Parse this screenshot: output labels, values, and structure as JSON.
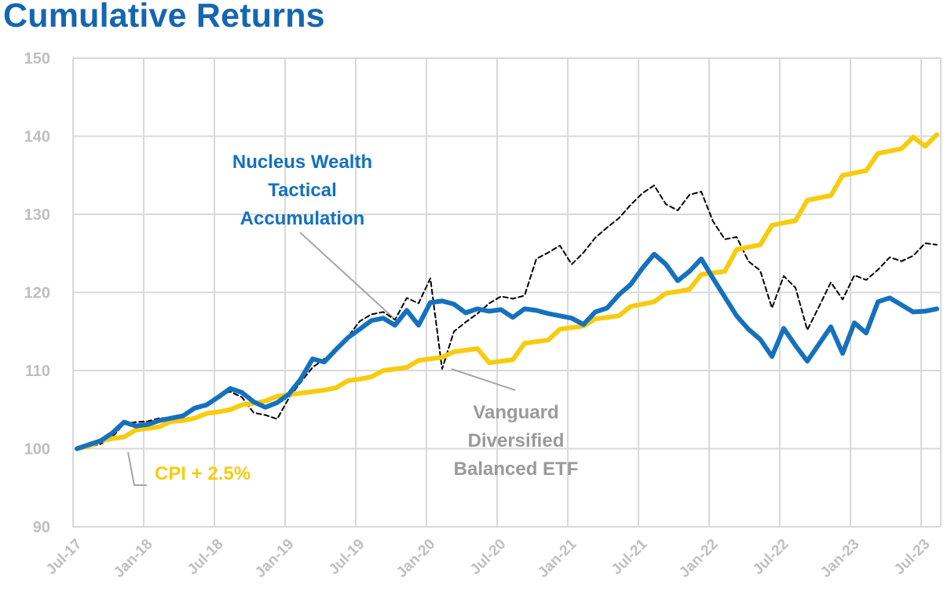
{
  "title": "Cumulative Returns",
  "colors": {
    "title": "#1566b0",
    "nucleus": "#1571bd",
    "cpi": "#f8cb0e",
    "vanguard": "#000000",
    "grid": "#d9d9d9",
    "tick": "#bfbfbf",
    "leader": "#a6a6a6",
    "vanguard_label": "#9a9a9a"
  },
  "chart_data": {
    "type": "line",
    "title": "Cumulative Returns",
    "xlabel": "",
    "ylabel": "",
    "ylim": [
      90,
      150
    ],
    "yticks": [
      "90",
      "100",
      "110",
      "120",
      "130",
      "140",
      "150"
    ],
    "xtick_labels": [
      "Jul-17",
      "Jan-18",
      "Jul-18",
      "Jan-19",
      "Jul-19",
      "Jan-20",
      "Jul-20",
      "Jan-21",
      "Jul-21",
      "Jan-22",
      "Jul-22",
      "Jan-23",
      "Jul-23"
    ],
    "grid": true,
    "legend": "none (direct labels)",
    "series": [
      {
        "name": "Nucleus Wealth Tactical Accumulation",
        "color": "#1571bd",
        "style": "solid-thick",
        "values": [
          100,
          100.5,
          101,
          102,
          103.4,
          102.9,
          103.1,
          103.6,
          103.9,
          104.2,
          105.2,
          105.6,
          106.6,
          107.7,
          107.2,
          106,
          105.3,
          105.9,
          107,
          108.9,
          111.5,
          111.1,
          112.7,
          114.2,
          115.3,
          116.4,
          116.7,
          115.8,
          117.7,
          115.8,
          118.7,
          118.9,
          118.5,
          117.4,
          117.9,
          117.6,
          117.8,
          116.8,
          117.9,
          117.7,
          117.3,
          117,
          116.7,
          115.9,
          117.5,
          118,
          119.7,
          121,
          123.1,
          124.9,
          123.6,
          121.5,
          122.7,
          124.3,
          121.8,
          119.4,
          117,
          115.3,
          114,
          111.8,
          115.4,
          113.2,
          111.2,
          113.4,
          115.6,
          112.2,
          116.1,
          114.8,
          118.8,
          119.3,
          118.4,
          117.5,
          117.6,
          117.9
        ]
      },
      {
        "name": "CPI + 2.5%",
        "color": "#f8cb0e",
        "style": "solid-thick",
        "values": [
          100,
          100.3,
          101,
          101.3,
          101.5,
          102.4,
          102.6,
          102.8,
          103.5,
          103.6,
          103.9,
          104.5,
          104.7,
          105,
          105.6,
          105.8,
          106.1,
          106.7,
          106.9,
          107.1,
          107.3,
          107.5,
          107.8,
          108.7,
          108.9,
          109.2,
          110,
          110.2,
          110.4,
          111.3,
          111.5,
          111.7,
          112.4,
          112.6,
          112.8,
          111,
          111.2,
          111.4,
          113.5,
          113.7,
          113.9,
          115.3,
          115.5,
          115.7,
          116.6,
          116.8,
          117,
          118.2,
          118.5,
          118.8,
          119.9,
          120.1,
          120.4,
          122.3,
          122.5,
          122.7,
          125.5,
          125.8,
          126.1,
          128.6,
          128.9,
          129.2,
          131.8,
          132.1,
          132.4,
          135,
          135.3,
          135.6,
          137.8,
          138.1,
          138.4,
          139.9,
          138.7,
          140.2
        ]
      },
      {
        "name": "Vanguard Diversified Balanced ETF",
        "color": "#000000",
        "style": "dashed-thin",
        "values": [
          100,
          100.2,
          100.6,
          101.5,
          103.2,
          103.4,
          103.5,
          103.9,
          104,
          104.1,
          105,
          105.7,
          106.8,
          107.3,
          106.6,
          104.6,
          104.3,
          103.8,
          106.5,
          108.5,
          110.4,
          111.5,
          112.7,
          114.3,
          116.3,
          117.2,
          117.5,
          116.5,
          119.3,
          118.6,
          121.8,
          110.2,
          115,
          116.2,
          117.3,
          118.6,
          119.5,
          119.2,
          119.6,
          124.3,
          125.1,
          126,
          123.6,
          125.1,
          127,
          128.3,
          129.5,
          131.2,
          132.7,
          133.7,
          131.3,
          130.5,
          132.5,
          132.9,
          129.1,
          126.8,
          127.1,
          124,
          122.8,
          118,
          122.1,
          120.6,
          115.2,
          118.2,
          121.3,
          119.1,
          122.2,
          121.6,
          122.9,
          124.5,
          124,
          124.7,
          126.3,
          126.1
        ]
      }
    ],
    "annotations": [
      {
        "text": [
          "Nucleus Wealth",
          "Tactical",
          "Accumulation"
        ],
        "series": "Nucleus Wealth Tactical Accumulation"
      },
      {
        "text": [
          "Vanguard",
          "Diversified",
          "Balanced ETF"
        ],
        "series": "Vanguard Diversified Balanced ETF"
      },
      {
        "text": [
          "CPI + 2.5%"
        ],
        "series": "CPI + 2.5%"
      }
    ]
  }
}
